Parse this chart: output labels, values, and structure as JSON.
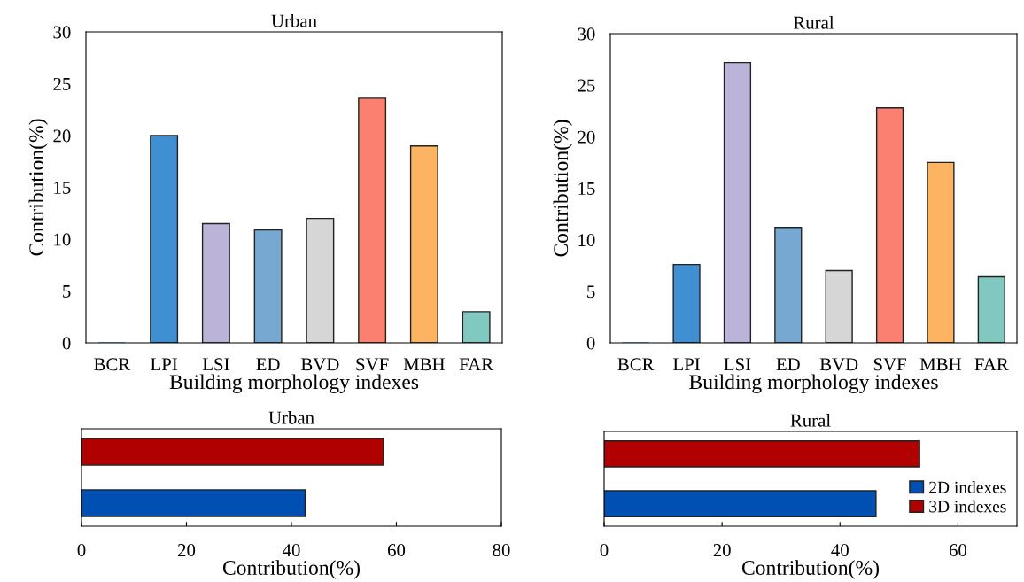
{
  "chart_data": [
    {
      "type": "bar",
      "title": "Urban",
      "xlabel": "Building morphology indexes",
      "ylabel": "Contribution(%)",
      "categories": [
        "BCR",
        "LPI",
        "LSI",
        "ED",
        "BVD",
        "SVF",
        "MBH",
        "FAR"
      ],
      "values": [
        0,
        20.0,
        11.5,
        10.9,
        12.0,
        23.6,
        19.0,
        3.0
      ],
      "colors": [
        "#3f8fd2",
        "#3f8fd2",
        "#bcb4d8",
        "#76a8d2",
        "#d6d6d6",
        "#fb8070",
        "#fdb462",
        "#80c8c0"
      ],
      "ylim": [
        0,
        30
      ],
      "yticks": [
        0,
        5,
        10,
        15,
        20,
        25,
        30
      ],
      "grid": false,
      "legend": false
    },
    {
      "type": "bar",
      "title": "Rural",
      "xlabel": "Building morphology indexes",
      "ylabel": "Contribution(%)",
      "categories": [
        "BCR",
        "LPI",
        "LSI",
        "ED",
        "BVD",
        "SVF",
        "MBH",
        "FAR"
      ],
      "values": [
        0,
        7.6,
        27.2,
        11.2,
        7.0,
        22.8,
        17.5,
        6.4
      ],
      "colors": [
        "#3f8fd2",
        "#3f8fd2",
        "#bcb4d8",
        "#76a8d2",
        "#d6d6d6",
        "#fb8070",
        "#fdb462",
        "#80c8c0"
      ],
      "ylim": [
        0,
        30
      ],
      "yticks": [
        0,
        5,
        10,
        15,
        20,
        25,
        30
      ],
      "grid": false,
      "legend": false
    },
    {
      "type": "bar",
      "orientation": "horizontal",
      "title": "Urban",
      "xlabel": "Contribution(%)",
      "categories": [
        null,
        null
      ],
      "series": [
        {
          "color": "#b00000",
          "values": [
            57.5,
            null
          ]
        },
        {
          "color": "#0050b4",
          "values": [
            null,
            42.6
          ]
        }
      ],
      "xlim": [
        0,
        80
      ],
      "xticks": [
        0,
        20,
        40,
        60,
        80
      ],
      "grid": false,
      "legend": false
    },
    {
      "type": "bar",
      "orientation": "horizontal",
      "title": "Rural",
      "xlabel": "Contribution(%)",
      "categories": [
        null,
        null
      ],
      "series": [
        {
          "name": "3D indexes",
          "color": "#b00000",
          "values": [
            53.5,
            null
          ]
        },
        {
          "name": "2D indexes",
          "color": "#0050b4",
          "values": [
            null,
            46.1
          ]
        }
      ],
      "xlim": [
        0,
        70
      ],
      "xticks": [
        0,
        20,
        40,
        60
      ],
      "grid": false,
      "legend": "bottom right"
    }
  ]
}
